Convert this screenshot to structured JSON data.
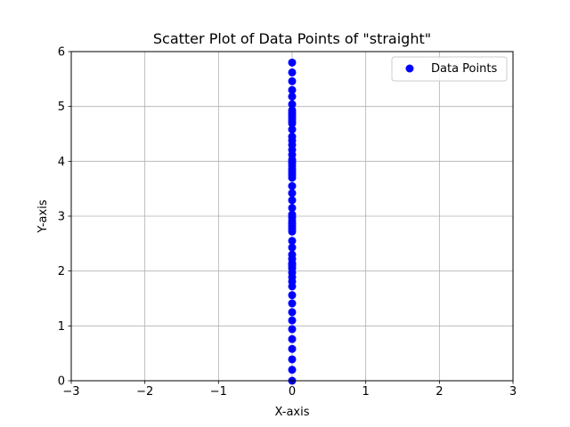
{
  "chart_data": {
    "type": "scatter",
    "title": "Scatter Plot of Data Points of \"straight\"",
    "xlabel": "X-axis",
    "ylabel": "Y-axis",
    "xlim": [
      -3,
      3
    ],
    "ylim": [
      0,
      6
    ],
    "xticks": [
      -3,
      -2,
      -1,
      0,
      1,
      2,
      3
    ],
    "xtick_labels": [
      "−3",
      "−2",
      "−1",
      "0",
      "1",
      "2",
      "3"
    ],
    "yticks": [
      0,
      1,
      2,
      3,
      4,
      5,
      6
    ],
    "ytick_labels": [
      "0",
      "1",
      "2",
      "3",
      "4",
      "5",
      "6"
    ],
    "grid": true,
    "legend_position": "top-right",
    "series": [
      {
        "name": "Data Points",
        "color": "#0000ff",
        "marker": "circle",
        "x": [
          0,
          0,
          0,
          0,
          0,
          0,
          0,
          0,
          0,
          0,
          0,
          0,
          0,
          0,
          0,
          0,
          0,
          0,
          0,
          0,
          0,
          0,
          0,
          0,
          0,
          0,
          0,
          0,
          0,
          0,
          0,
          0,
          0,
          0,
          0,
          0,
          0,
          0,
          0,
          0,
          0,
          0,
          0,
          0,
          0,
          0,
          0,
          0,
          0,
          0,
          0,
          0,
          0,
          0,
          0,
          0,
          0,
          0
        ],
        "y": [
          0.0,
          0.2,
          0.39,
          0.58,
          0.76,
          0.94,
          1.1,
          1.25,
          1.41,
          1.56,
          1.72,
          1.81,
          1.89,
          1.97,
          2.05,
          2.14,
          2.22,
          2.3,
          2.43,
          2.55,
          2.72,
          2.77,
          2.82,
          2.87,
          2.92,
          2.98,
          3.03,
          3.15,
          3.29,
          3.42,
          3.55,
          3.7,
          3.75,
          3.8,
          3.85,
          3.91,
          3.96,
          4.03,
          4.12,
          4.21,
          4.3,
          4.38,
          4.45,
          4.58,
          4.69,
          4.73,
          4.78,
          4.83,
          4.88,
          4.93,
          5.04,
          5.18,
          5.3,
          5.46,
          5.62,
          5.8,
          2.1,
          4.0
        ]
      }
    ]
  }
}
